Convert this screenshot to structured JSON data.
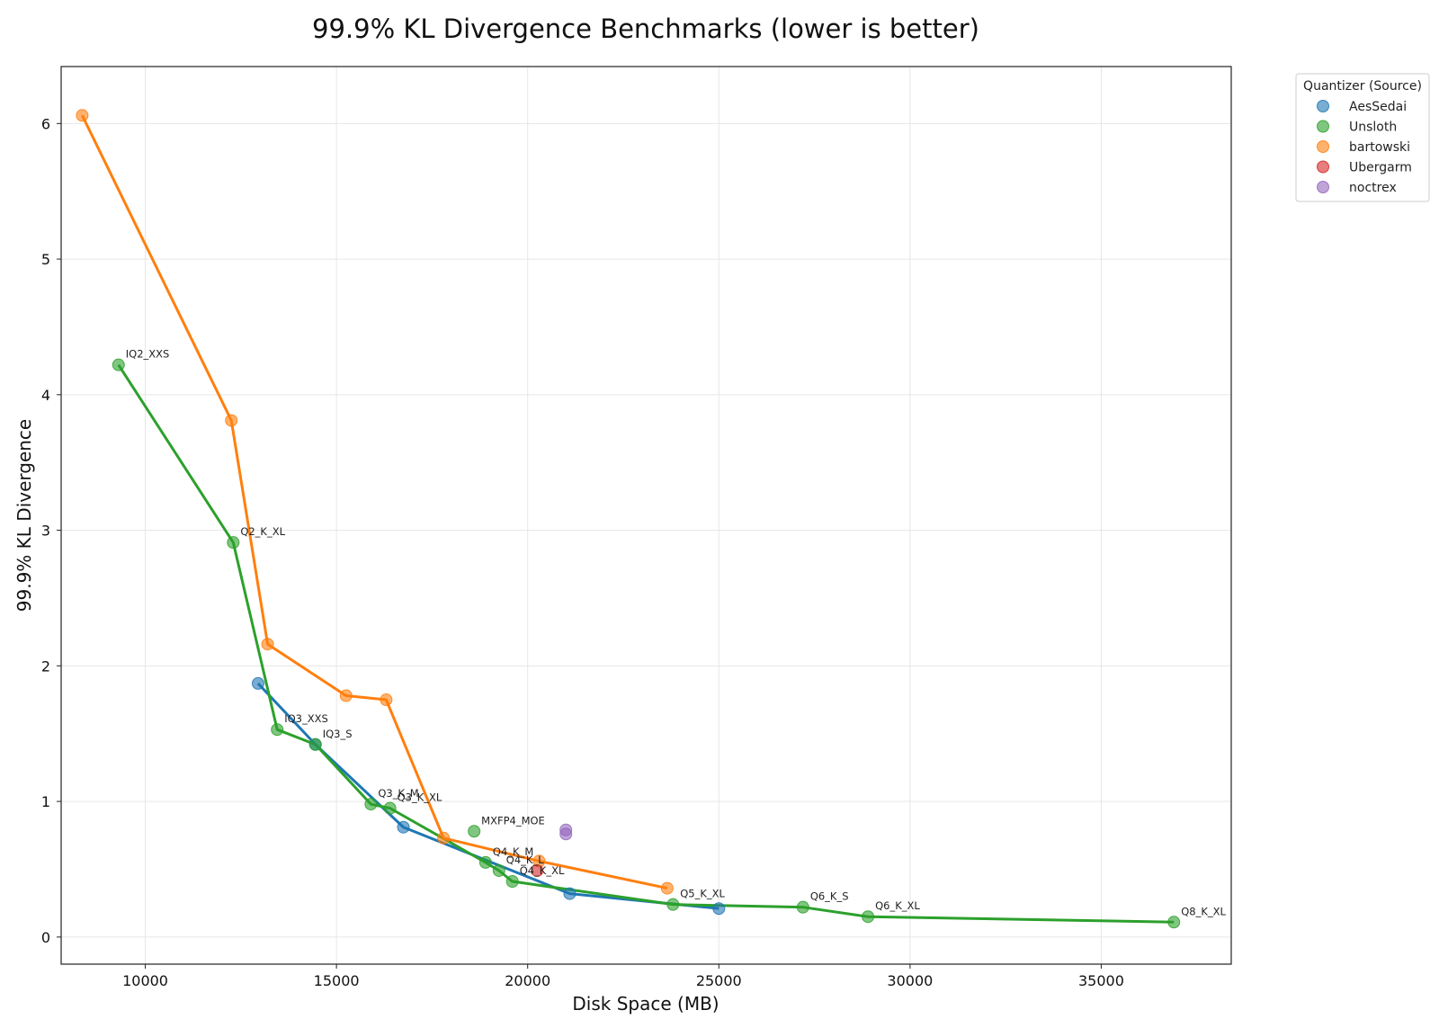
{
  "chart_data": {
    "type": "scatter",
    "title": "99.9% KL Divergence Benchmarks (lower is better)",
    "xlabel": "Disk Space (MB)",
    "ylabel": "99.9% KL Divergence",
    "xlim": [
      7800,
      38400
    ],
    "ylim": [
      -0.2,
      6.42
    ],
    "xticks": [
      10000,
      15000,
      20000,
      25000,
      30000,
      35000
    ],
    "yticks": [
      0,
      1,
      2,
      3,
      4,
      5,
      6
    ],
    "grid": true,
    "legend": {
      "title": "Quantizer (Source)",
      "position": "outside-top-right"
    },
    "series": [
      {
        "name": "AesSedai",
        "color": "#1f77b4",
        "connected": true,
        "points": [
          {
            "x": 12950,
            "y": 1.87,
            "label": ""
          },
          {
            "x": 14450,
            "y": 1.42,
            "label": ""
          },
          {
            "x": 16750,
            "y": 0.81,
            "label": ""
          },
          {
            "x": 21100,
            "y": 0.32,
            "label": ""
          },
          {
            "x": 25000,
            "y": 0.21,
            "label": ""
          }
        ]
      },
      {
        "name": "Unsloth",
        "color": "#2ca02c",
        "connected": true,
        "points": [
          {
            "x": 9300,
            "y": 4.22,
            "label": "IQ2_XXS"
          },
          {
            "x": 12300,
            "y": 2.91,
            "label": "Q2_K_XL"
          },
          {
            "x": 13450,
            "y": 1.53,
            "label": "IQ3_XXS"
          },
          {
            "x": 14450,
            "y": 1.42,
            "label": "IQ3_S"
          },
          {
            "x": 15900,
            "y": 0.98,
            "label": "Q3_K_M"
          },
          {
            "x": 16400,
            "y": 0.95,
            "label": "Q3_K_XL"
          },
          {
            "x": 18900,
            "y": 0.55,
            "label": "Q4_K_M"
          },
          {
            "x": 19250,
            "y": 0.49,
            "label": "Q4_K_L"
          },
          {
            "x": 19600,
            "y": 0.41,
            "label": "Q4_K_XL"
          },
          {
            "x": 23800,
            "y": 0.24,
            "label": "Q5_K_XL"
          },
          {
            "x": 27200,
            "y": 0.22,
            "label": "Q6_K_S"
          },
          {
            "x": 28900,
            "y": 0.15,
            "label": "Q6_K_XL"
          },
          {
            "x": 36900,
            "y": 0.11,
            "label": "Q8_K_XL"
          }
        ]
      },
      {
        "name": "Unsloth",
        "color": "#2ca02c",
        "connected": false,
        "in_legend": false,
        "points": [
          {
            "x": 18600,
            "y": 0.78,
            "label": "MXFP4_MOE"
          }
        ]
      },
      {
        "name": "bartowski",
        "color": "#ff7f0e",
        "connected": true,
        "points": [
          {
            "x": 8350,
            "y": 6.06,
            "label": ""
          },
          {
            "x": 12250,
            "y": 3.81,
            "label": ""
          },
          {
            "x": 13200,
            "y": 2.16,
            "label": ""
          },
          {
            "x": 15250,
            "y": 1.78,
            "label": ""
          },
          {
            "x": 16300,
            "y": 1.75,
            "label": ""
          },
          {
            "x": 17800,
            "y": 0.73,
            "label": ""
          },
          {
            "x": 20300,
            "y": 0.56,
            "label": ""
          },
          {
            "x": 23650,
            "y": 0.36,
            "label": ""
          }
        ]
      },
      {
        "name": "Ubergarm",
        "color": "#d62728",
        "connected": false,
        "points": [
          {
            "x": 20250,
            "y": 0.49,
            "label": ""
          }
        ]
      },
      {
        "name": "noctrex",
        "color": "#9467bd",
        "connected": false,
        "points": [
          {
            "x": 21000,
            "y": 0.79,
            "label": ""
          },
          {
            "x": 21000,
            "y": 0.76,
            "label": ""
          }
        ]
      }
    ]
  }
}
